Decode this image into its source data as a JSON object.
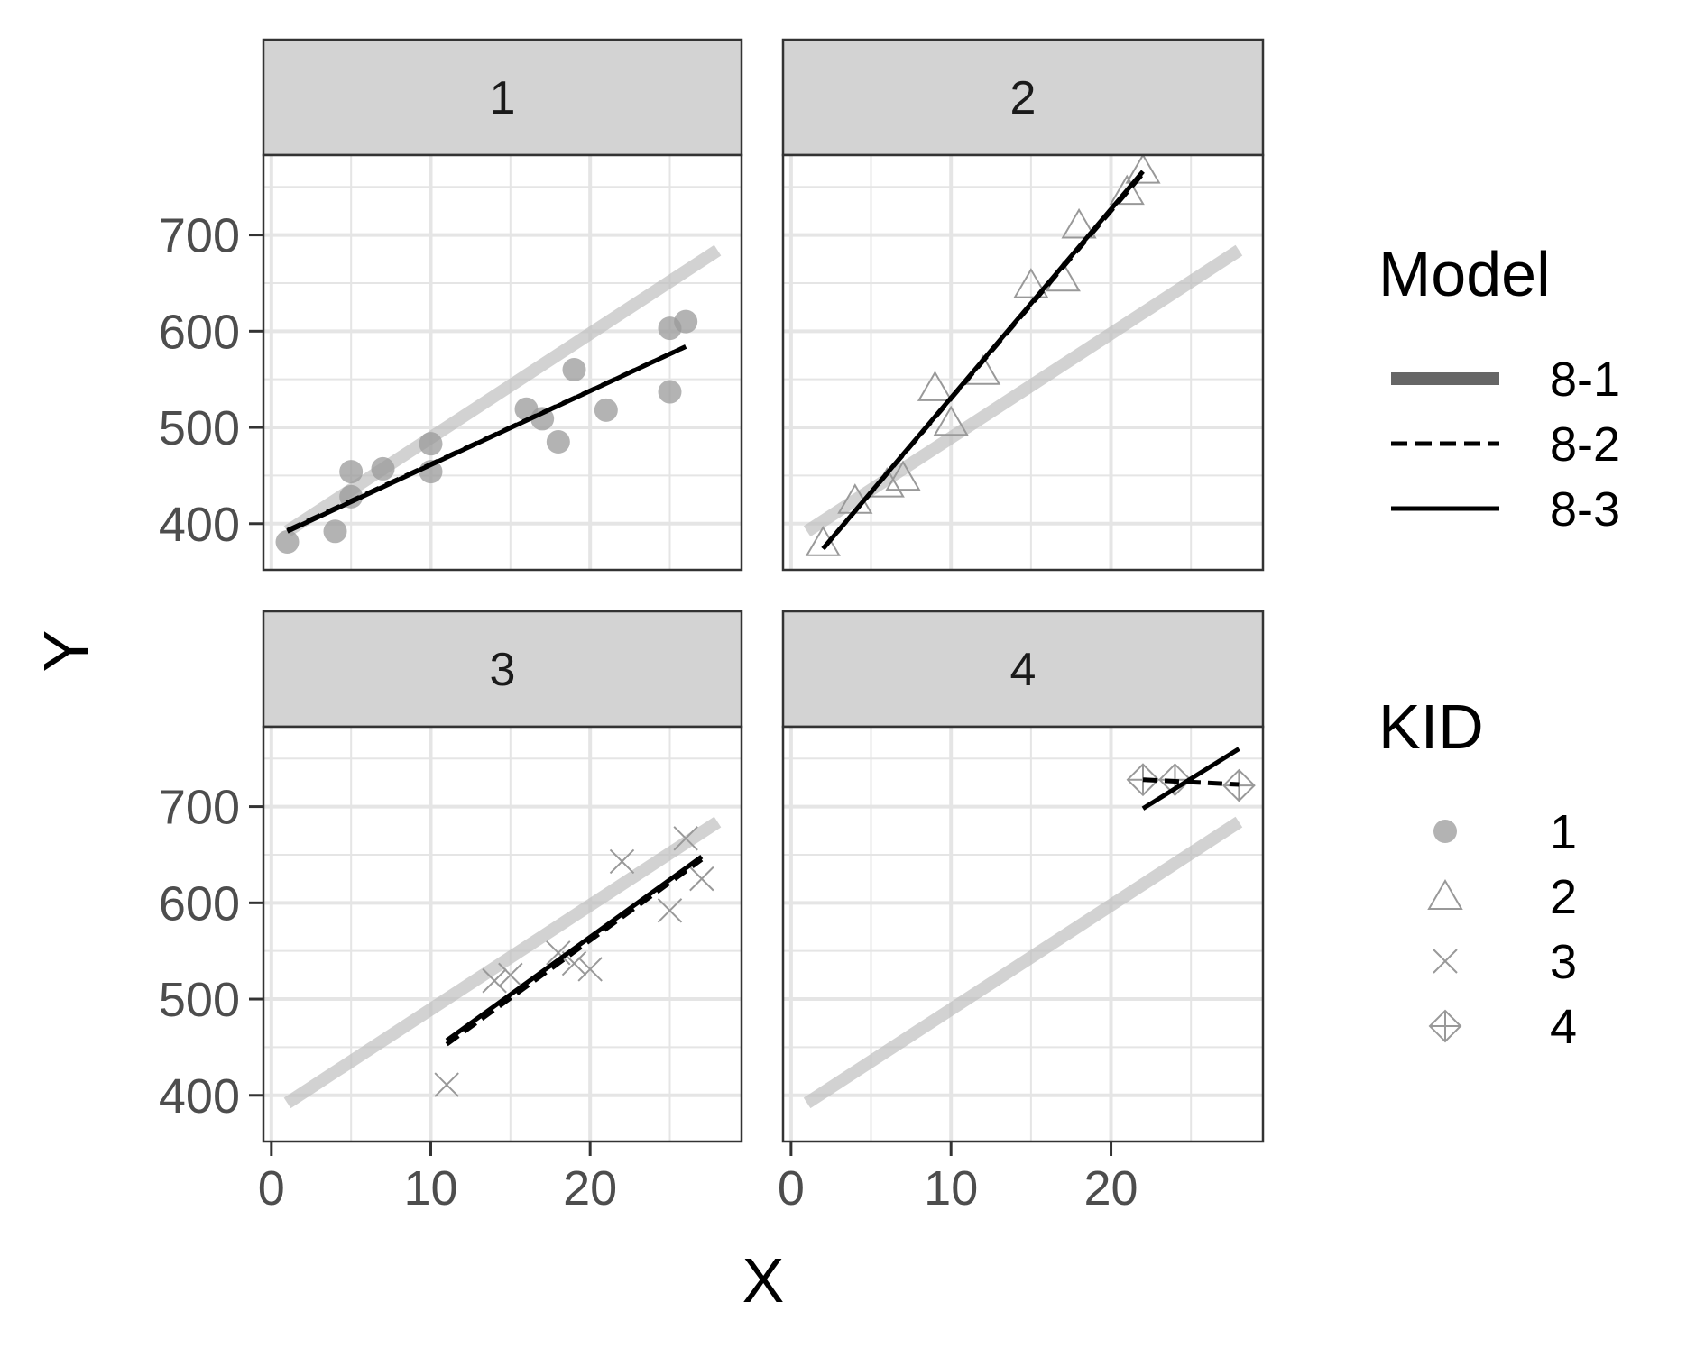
{
  "chart_data": {
    "type": "scatter",
    "facet_by": "KID",
    "xlabel": "X",
    "ylabel": "Y",
    "xlim": [
      -0.5,
      29.5
    ],
    "ylim": [
      352,
      783
    ],
    "x_ticks": [
      0,
      10,
      20
    ],
    "y_ticks": [
      400,
      500,
      600,
      700
    ],
    "grid": true,
    "legend_position": "right",
    "facets": [
      {
        "label": "1",
        "points": [
          [
            1,
            381
          ],
          [
            4,
            392
          ],
          [
            5,
            428
          ],
          [
            5,
            454
          ],
          [
            7,
            457
          ],
          [
            10,
            483
          ],
          [
            10,
            454
          ],
          [
            16,
            519
          ],
          [
            17,
            509
          ],
          [
            18,
            485
          ],
          [
            19,
            560
          ],
          [
            21,
            518
          ],
          [
            25,
            537
          ],
          [
            25,
            603
          ],
          [
            26,
            610
          ]
        ],
        "lines": {
          "8-1": [
            [
              1,
              392
            ],
            [
              28,
              684
            ]
          ],
          "8-2": [
            [
              1,
              393
            ],
            [
              26,
              584
            ]
          ],
          "8-3": [
            [
              1,
              392
            ],
            [
              26,
              584
            ]
          ]
        }
      },
      {
        "label": "2",
        "points": [
          [
            2,
            380
          ],
          [
            4,
            424
          ],
          [
            6,
            441
          ],
          [
            7,
            448
          ],
          [
            9,
            541
          ],
          [
            10,
            505
          ],
          [
            12,
            558
          ],
          [
            15,
            648
          ],
          [
            17,
            655
          ],
          [
            18,
            710
          ],
          [
            21,
            745
          ],
          [
            22,
            767
          ]
        ],
        "lines": {
          "8-1": [
            [
              1,
              392
            ],
            [
              28,
              684
            ]
          ],
          "8-2": [
            [
              2,
              374
            ],
            [
              22,
              764
            ]
          ],
          "8-3": [
            [
              2,
              374
            ],
            [
              22,
              766
            ]
          ]
        }
      },
      {
        "label": "3",
        "points": [
          [
            11,
            411
          ],
          [
            14,
            519
          ],
          [
            15,
            525
          ],
          [
            18,
            548
          ],
          [
            19,
            537
          ],
          [
            20,
            531
          ],
          [
            22,
            643
          ],
          [
            25,
            592
          ],
          [
            26,
            667
          ],
          [
            27,
            625
          ]
        ],
        "lines": {
          "8-1": [
            [
              1,
              392
            ],
            [
              28,
              684
            ]
          ],
          "8-2": [
            [
              11,
              453
            ],
            [
              27,
              645
            ]
          ],
          "8-3": [
            [
              11,
              457
            ],
            [
              27,
              648
            ]
          ]
        }
      },
      {
        "label": "4",
        "points": [
          [
            22,
            728
          ],
          [
            24,
            728
          ],
          [
            28,
            722
          ]
        ],
        "lines": {
          "8-1": [
            [
              1,
              392
            ],
            [
              28,
              684
            ]
          ],
          "8-2": [
            [
              22,
              728
            ],
            [
              28,
              723
            ]
          ],
          "8-3": [
            [
              22,
              698
            ],
            [
              28,
              760
            ]
          ]
        }
      }
    ],
    "legend": {
      "model_title": "Model",
      "model_entries": [
        "8-1",
        "8-2",
        "8-3"
      ],
      "kid_title": "KID",
      "kid_entries": [
        "1",
        "2",
        "3",
        "4"
      ]
    },
    "colors": {
      "panel_strip": "#d3d3d3",
      "grid": "#e5e5e5",
      "line_8_1": "#bfbfbf",
      "line_8_2": "#000000",
      "line_8_3": "#000000",
      "points": "#999999",
      "axis_text": "#4d4d4d"
    }
  }
}
